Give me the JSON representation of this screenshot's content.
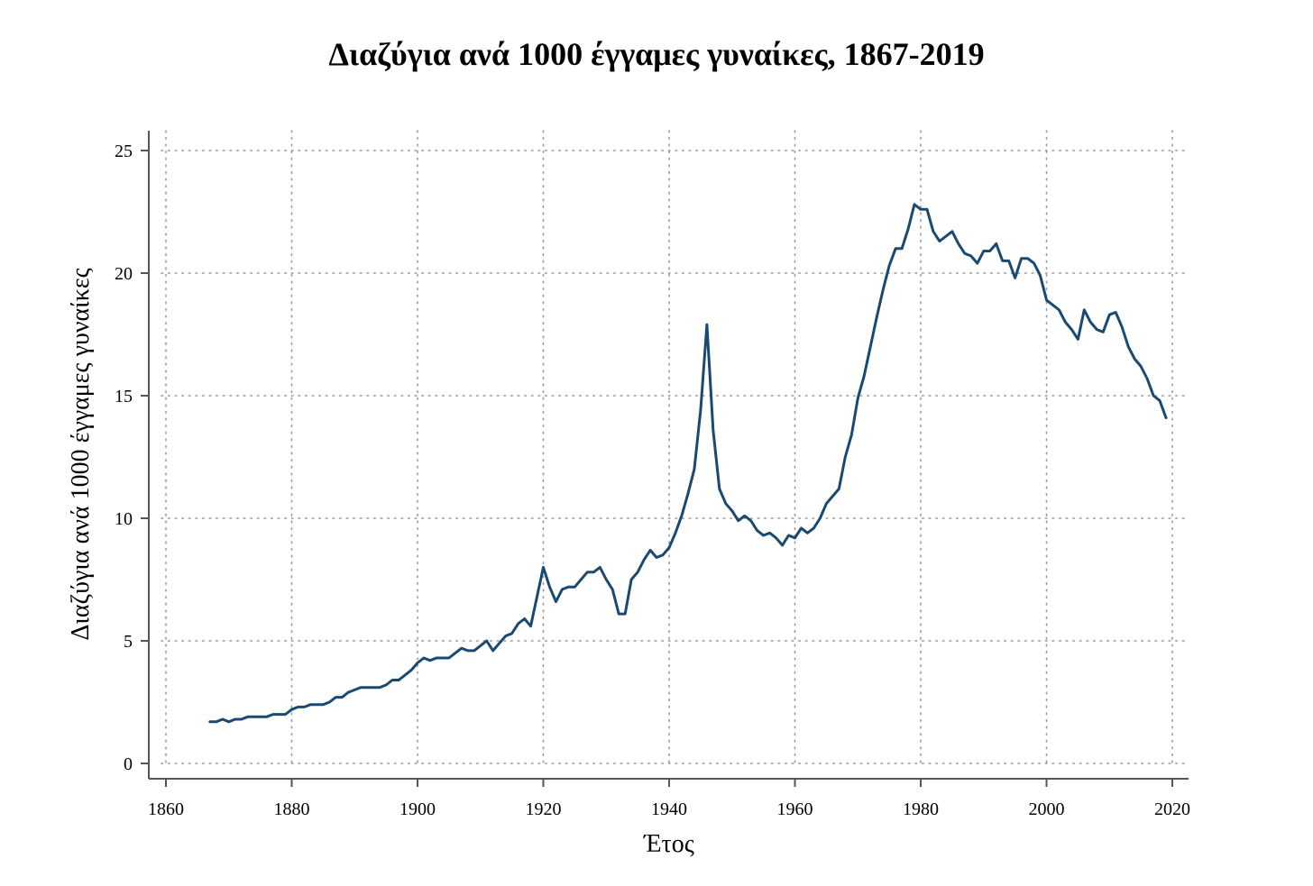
{
  "chart_data": {
    "type": "line",
    "title": "Διαζύγια ανά 1000 έγγαμες γυναίκες, 1867-2019",
    "xlabel": "Έτος",
    "ylabel": "Διαζύγια ανά 1000 έγγαμες γυναίκες",
    "xlim": [
      1860,
      2022
    ],
    "ylim": [
      0,
      25
    ],
    "xticks": [
      1860,
      1880,
      1900,
      1920,
      1940,
      1960,
      1980,
      2000,
      2020
    ],
    "yticks": [
      0,
      5,
      10,
      15,
      20,
      25
    ],
    "grid": true,
    "legend": "none",
    "line_color": "#1a4a72",
    "series": [
      {
        "x": [
          1867,
          1868,
          1869,
          1870,
          1871,
          1872,
          1873,
          1874,
          1875,
          1876,
          1877,
          1878,
          1879,
          1880,
          1881,
          1882,
          1883,
          1884,
          1885,
          1886,
          1887,
          1888,
          1889,
          1890,
          1891,
          1892,
          1893,
          1894,
          1895,
          1896,
          1897,
          1898,
          1899,
          1900,
          1901,
          1902,
          1903,
          1904,
          1905,
          1906,
          1907,
          1908,
          1909,
          1910,
          1911,
          1912,
          1913,
          1914,
          1915,
          1916,
          1917,
          1918,
          1919,
          1920,
          1921,
          1922,
          1923,
          1924,
          1925,
          1926,
          1927,
          1928,
          1929,
          1930,
          1931,
          1932,
          1933,
          1934,
          1935,
          1936,
          1937,
          1938,
          1939,
          1940,
          1941,
          1942,
          1943,
          1944,
          1945,
          1946,
          1947,
          1948,
          1949,
          1950,
          1951,
          1952,
          1953,
          1954,
          1955,
          1956,
          1957,
          1958,
          1959,
          1960,
          1961,
          1962,
          1963,
          1964,
          1965,
          1966,
          1967,
          1968,
          1969,
          1970,
          1971,
          1972,
          1973,
          1974,
          1975,
          1976,
          1977,
          1978,
          1979,
          1980,
          1981,
          1982,
          1983,
          1984,
          1985,
          1986,
          1987,
          1988,
          1989,
          1990,
          1991,
          1992,
          1993,
          1994,
          1995,
          1996,
          1997,
          1998,
          1999,
          2000,
          2001,
          2002,
          2003,
          2004,
          2005,
          2006,
          2007,
          2008,
          2009,
          2010,
          2011,
          2012,
          2013,
          2014,
          2015,
          2016,
          2017,
          2018,
          2019
        ],
        "values": [
          1.7,
          1.7,
          1.8,
          1.7,
          1.8,
          1.8,
          1.9,
          1.9,
          1.9,
          1.9,
          2.0,
          2.0,
          2.0,
          2.2,
          2.3,
          2.3,
          2.4,
          2.4,
          2.4,
          2.5,
          2.7,
          2.7,
          2.9,
          3.0,
          3.1,
          3.1,
          3.1,
          3.1,
          3.2,
          3.4,
          3.4,
          3.6,
          3.8,
          4.1,
          4.3,
          4.2,
          4.3,
          4.3,
          4.3,
          4.5,
          4.7,
          4.6,
          4.6,
          4.8,
          5.0,
          4.6,
          4.9,
          5.2,
          5.3,
          5.7,
          5.9,
          5.6,
          6.8,
          8.0,
          7.2,
          6.6,
          7.1,
          7.2,
          7.2,
          7.5,
          7.8,
          7.8,
          8.0,
          7.5,
          7.1,
          6.1,
          6.1,
          7.5,
          7.8,
          8.3,
          8.7,
          8.4,
          8.5,
          8.8,
          9.4,
          10.1,
          11.0,
          12.0,
          14.4,
          17.9,
          13.6,
          11.2,
          10.6,
          10.3,
          9.9,
          10.1,
          9.9,
          9.5,
          9.3,
          9.4,
          9.2,
          8.9,
          9.3,
          9.2,
          9.6,
          9.4,
          9.6,
          10.0,
          10.6,
          10.9,
          11.2,
          12.5,
          13.4,
          14.9,
          15.8,
          17.0,
          18.2,
          19.3,
          20.3,
          21.0,
          21.0,
          21.8,
          22.8,
          22.6,
          22.6,
          21.7,
          21.3,
          21.5,
          21.7,
          21.2,
          20.8,
          20.7,
          20.4,
          20.9,
          20.9,
          21.2,
          20.5,
          20.5,
          19.8,
          20.6,
          20.6,
          20.4,
          19.9,
          18.9,
          18.7,
          18.5,
          18.0,
          17.7,
          17.3,
          18.5,
          18.0,
          17.7,
          17.6,
          18.3,
          18.4,
          17.8,
          17.0,
          16.5,
          16.2,
          15.7,
          15.0,
          14.8,
          14.1
        ]
      }
    ]
  }
}
